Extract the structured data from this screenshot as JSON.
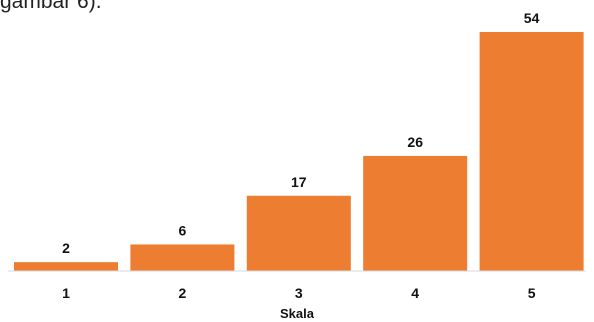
{
  "page": {
    "top_text_fragment": "gambar 6)."
  },
  "chart_data": {
    "type": "bar",
    "title": "",
    "xlabel": "Skala",
    "ylabel": "",
    "categories": [
      "1",
      "2",
      "3",
      "4",
      "5"
    ],
    "values": [
      2,
      6,
      17,
      26,
      54
    ],
    "ylim": [
      0,
      54
    ],
    "grid": false,
    "legend": "none",
    "data_labels": true,
    "colors": {
      "bar": "#ED7D31"
    }
  }
}
